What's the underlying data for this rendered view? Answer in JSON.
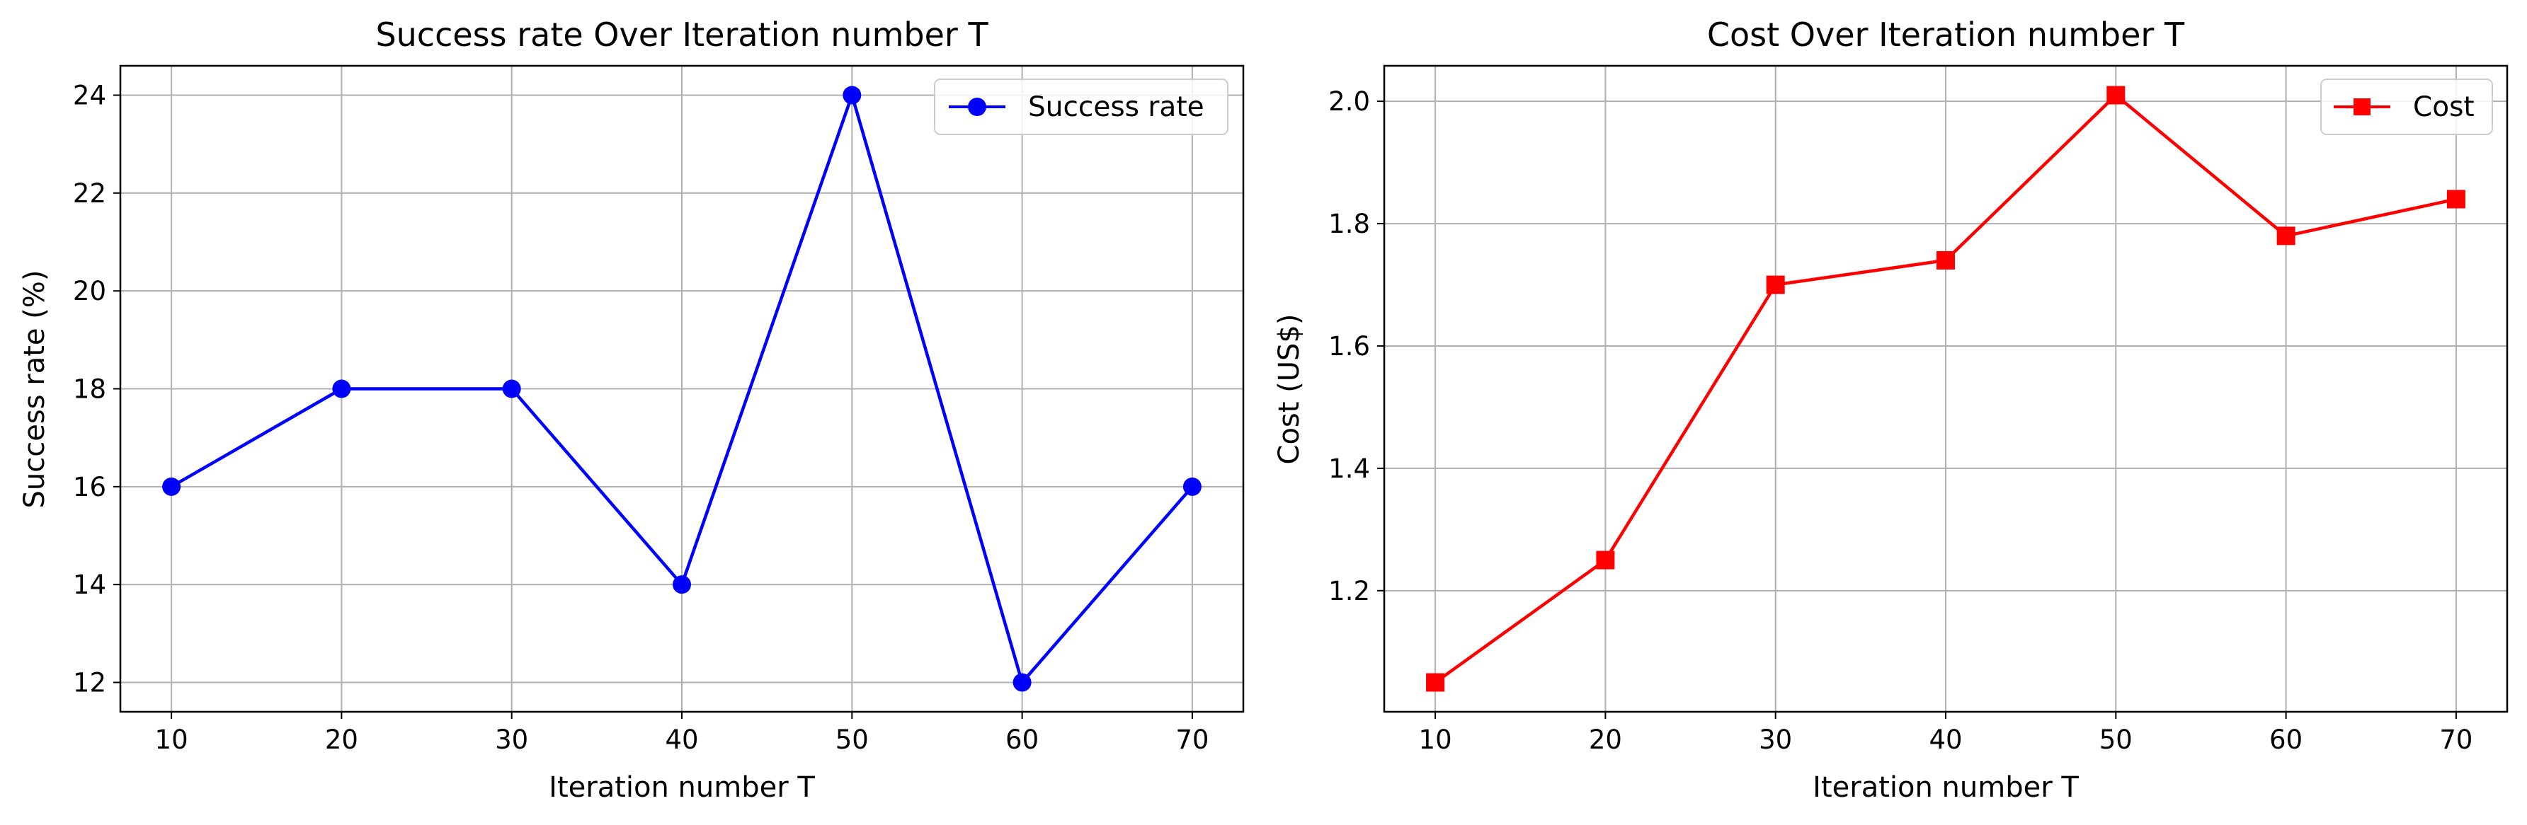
{
  "chart_data": [
    {
      "type": "line",
      "title": "Success rate Over Iteration number T",
      "xlabel": "Iteration number T",
      "ylabel": "Success rate (%)",
      "x": [
        10,
        20,
        30,
        40,
        50,
        60,
        70
      ],
      "xticks": [
        "10",
        "20",
        "30",
        "40",
        "50",
        "60",
        "70"
      ],
      "yticks": [
        "12",
        "14",
        "16",
        "18",
        "20",
        "22",
        "24"
      ],
      "xlim": [
        7,
        73
      ],
      "ylim": [
        11.4,
        24.6
      ],
      "grid": true,
      "legend_position": "top-right",
      "series": [
        {
          "name": "Success rate",
          "values": [
            16,
            18,
            18,
            14,
            24,
            12,
            16
          ],
          "color": "#0000ff",
          "marker": "circle"
        }
      ]
    },
    {
      "type": "line",
      "title": "Cost Over Iteration number T",
      "xlabel": "Iteration number T",
      "ylabel": "Cost (US$)",
      "x": [
        10,
        20,
        30,
        40,
        50,
        60,
        70
      ],
      "xticks": [
        "10",
        "20",
        "30",
        "40",
        "50",
        "60",
        "70"
      ],
      "yticks": [
        "1.2",
        "1.4",
        "1.6",
        "1.8",
        "2.0"
      ],
      "xlim": [
        7,
        73
      ],
      "ylim": [
        1.002,
        2.058
      ],
      "grid": true,
      "legend_position": "top-right",
      "series": [
        {
          "name": "Cost",
          "values": [
            1.05,
            1.25,
            1.7,
            1.74,
            2.01,
            1.78,
            1.84
          ],
          "color": "#ff0000",
          "marker": "square"
        }
      ]
    }
  ]
}
